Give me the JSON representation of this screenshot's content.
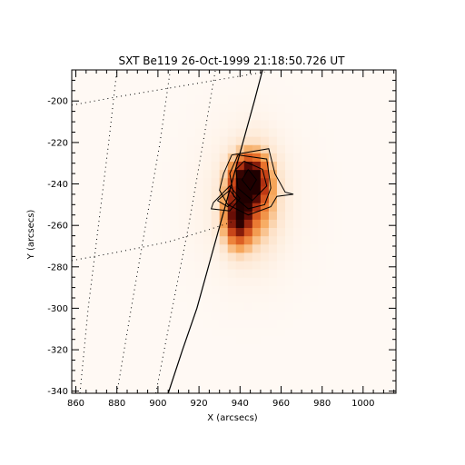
{
  "chart_data": {
    "type": "heatmap",
    "title": "SXT Be119 26-Oct-1999 21:18:50.726 UT",
    "xlabel": "X (arcsecs)",
    "ylabel": "Y (arcsecs)",
    "xlim": [
      858,
      1016
    ],
    "ylim": [
      -341,
      -185
    ],
    "xticks": [
      860,
      880,
      900,
      920,
      940,
      960,
      980,
      1000
    ],
    "yticks": [
      -200,
      -220,
      -240,
      -260,
      -280,
      -300,
      -320,
      -340
    ],
    "colormap": [
      "#fff9f4",
      "#fde2c8",
      "#f6a85c",
      "#e8702a",
      "#c03a14",
      "#6a0e06",
      "#200000"
    ],
    "image_intensity_blobs": [
      {
        "x": 944,
        "y": -238,
        "sx": 5.5,
        "sy": 7.5,
        "amp": 1.0
      },
      {
        "x": 939,
        "y": -256,
        "sx": 4.5,
        "sy": 9.0,
        "amp": 0.85
      },
      {
        "x": 948,
        "y": -246,
        "sx": 6.5,
        "sy": 14.0,
        "amp": 0.35
      },
      {
        "x": 944,
        "y": -248,
        "sx": 15.0,
        "sy": 22.0,
        "amp": 0.07
      }
    ],
    "limb_curve": [
      [
        905,
        -341
      ],
      [
        912,
        -320
      ],
      [
        919,
        -300
      ],
      [
        926,
        -275
      ],
      [
        933,
        -250
      ],
      [
        940,
        -225
      ],
      [
        947,
        -200
      ],
      [
        951,
        -185
      ]
    ],
    "grid_lines": [
      [
        [
          862,
          -341
        ],
        [
          866,
          -300
        ],
        [
          871,
          -260
        ],
        [
          876,
          -220
        ],
        [
          880,
          -185
        ]
      ],
      [
        [
          880,
          -341
        ],
        [
          887,
          -300
        ],
        [
          894,
          -260
        ],
        [
          901,
          -220
        ],
        [
          906,
          -185
        ]
      ],
      [
        [
          899,
          -341
        ],
        [
          907,
          -300
        ],
        [
          915,
          -260
        ],
        [
          922,
          -220
        ],
        [
          928,
          -185
        ]
      ],
      [
        [
          858,
          -202
        ],
        [
          880,
          -198
        ],
        [
          910,
          -193
        ],
        [
          940,
          -188
        ],
        [
          952,
          -186
        ]
      ],
      [
        [
          858,
          -277
        ],
        [
          880,
          -273
        ],
        [
          905,
          -268
        ],
        [
          925,
          -262
        ],
        [
          937,
          -258
        ]
      ]
    ],
    "contours": [
      [
        [
          944,
          -233
        ],
        [
          948,
          -238
        ],
        [
          945,
          -243
        ],
        [
          941,
          -238
        ],
        [
          944,
          -233
        ]
      ],
      [
        [
          942,
          -229
        ],
        [
          951,
          -233
        ],
        [
          953,
          -241
        ],
        [
          946,
          -248
        ],
        [
          939,
          -242
        ],
        [
          938,
          -233
        ],
        [
          942,
          -229
        ]
      ],
      [
        [
          939,
          -226
        ],
        [
          953,
          -228
        ],
        [
          955,
          -242
        ],
        [
          952,
          -250
        ],
        [
          944,
          -252
        ],
        [
          937,
          -246
        ],
        [
          935,
          -235
        ],
        [
          939,
          -226
        ]
      ],
      [
        [
          936,
          -226
        ],
        [
          954,
          -223
        ],
        [
          957,
          -235
        ],
        [
          962,
          -244
        ],
        [
          966,
          -245
        ],
        [
          958,
          -246
        ],
        [
          955,
          -251
        ],
        [
          944,
          -255
        ],
        [
          934,
          -250
        ],
        [
          930,
          -243
        ],
        [
          932,
          -235
        ],
        [
          936,
          -226
        ]
      ],
      [
        [
          929,
          -248
        ],
        [
          935,
          -243
        ],
        [
          938,
          -247
        ],
        [
          934,
          -251
        ],
        [
          929,
          -248
        ]
      ],
      [
        [
          927,
          -249
        ],
        [
          935,
          -241
        ],
        [
          940,
          -247
        ],
        [
          935,
          -253
        ],
        [
          926,
          -252
        ],
        [
          927,
          -249
        ]
      ]
    ]
  }
}
